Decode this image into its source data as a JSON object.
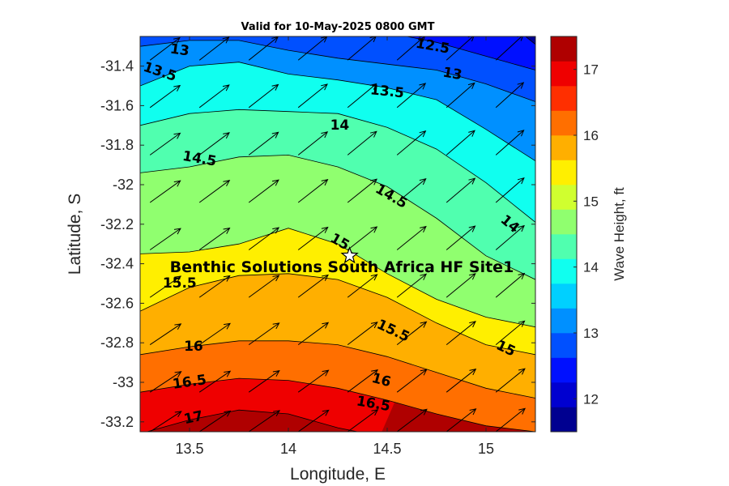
{
  "chart_data": {
    "type": "contour",
    "title": "Valid for 10-May-2025 0800 GMT",
    "xlabel": "Longitude, E",
    "ylabel": "Latitude, S",
    "xlim": [
      13.25,
      15.25
    ],
    "ylim": [
      -33.25,
      -31.25
    ],
    "x_ticks": [
      13.5,
      14,
      14.5,
      15
    ],
    "x_tick_labels": [
      "13.5",
      "14",
      "14.5",
      "15"
    ],
    "y_ticks": [
      -31.4,
      -31.6,
      -31.8,
      -32,
      -32.2,
      -32.4,
      -32.6,
      -32.8,
      -33,
      -33.2
    ],
    "y_tick_labels": [
      "-31.4",
      "-31.6",
      "-31.8",
      "-32",
      "-32.2",
      "-32.4",
      "-32.6",
      "-32.8",
      "-33",
      "-33.2"
    ],
    "colorbar": {
      "label": "Wave Height, ft",
      "range": [
        11.5,
        17.5
      ],
      "tick_values": [
        12,
        13,
        14,
        15,
        16,
        17
      ],
      "tick_labels": [
        "12",
        "13",
        "14",
        "15",
        "16",
        "17"
      ],
      "colors": [
        "#000090",
        "#0000D0",
        "#0010FF",
        "#0050FF",
        "#0090FF",
        "#00D0FF",
        "#10FFEF",
        "#50FFAF",
        "#90FF6F",
        "#D0FF2F",
        "#FFEF00",
        "#FFAF00",
        "#FF6F00",
        "#FF2F00",
        "#EF0000",
        "#AF0000"
      ]
    },
    "contour_levels": [
      12,
      12.5,
      13,
      13.5,
      14,
      14.5,
      15,
      15.5,
      16,
      16.5,
      17
    ],
    "contour_lines": [
      {
        "level": 17,
        "points": [
          [
            13.25,
            -33.26
          ],
          [
            13.5,
            -33.19
          ],
          [
            13.75,
            -33.14
          ],
          [
            14.0,
            -33.16
          ],
          [
            14.25,
            -33.23
          ],
          [
            14.35,
            -33.25
          ]
        ]
      },
      {
        "level": 16.5,
        "points": [
          [
            13.25,
            -33.05
          ],
          [
            13.5,
            -33.01
          ],
          [
            13.75,
            -32.98
          ],
          [
            14.0,
            -32.99
          ],
          [
            14.25,
            -33.03
          ],
          [
            14.5,
            -33.09
          ],
          [
            14.75,
            -33.16
          ],
          [
            15.0,
            -33.22
          ],
          [
            15.25,
            -33.25
          ]
        ]
      },
      {
        "level": 16,
        "points": [
          [
            13.25,
            -32.86
          ],
          [
            13.5,
            -32.82
          ],
          [
            13.75,
            -32.79
          ],
          [
            14.0,
            -32.79
          ],
          [
            14.25,
            -32.81
          ],
          [
            14.5,
            -32.87
          ],
          [
            14.75,
            -32.95
          ],
          [
            15.0,
            -33.03
          ],
          [
            15.25,
            -33.08
          ]
        ]
      },
      {
        "level": 15.5,
        "points": [
          [
            13.25,
            -32.64
          ],
          [
            13.5,
            -32.52
          ],
          [
            13.75,
            -32.46
          ],
          [
            14.0,
            -32.45
          ],
          [
            14.25,
            -32.48
          ],
          [
            14.5,
            -32.57
          ],
          [
            14.75,
            -32.7
          ],
          [
            15.0,
            -32.81
          ],
          [
            15.25,
            -32.86
          ]
        ]
      },
      {
        "level": 15,
        "points": [
          [
            13.25,
            -32.35
          ],
          [
            13.5,
            -32.34
          ],
          [
            13.75,
            -32.3
          ],
          [
            14.0,
            -32.22
          ],
          [
            14.25,
            -32.3
          ],
          [
            14.5,
            -32.45
          ],
          [
            14.75,
            -32.58
          ],
          [
            15.0,
            -32.67
          ],
          [
            15.25,
            -32.72
          ]
        ]
      },
      {
        "level": 14.5,
        "points": [
          [
            13.25,
            -31.94
          ],
          [
            13.5,
            -31.91
          ],
          [
            13.75,
            -31.86
          ],
          [
            14.0,
            -31.85
          ],
          [
            14.25,
            -31.91
          ],
          [
            14.5,
            -32.01
          ],
          [
            14.75,
            -32.17
          ],
          [
            15.0,
            -32.36
          ],
          [
            15.25,
            -32.48
          ]
        ]
      },
      {
        "level": 14,
        "points": [
          [
            13.25,
            -31.7
          ],
          [
            13.5,
            -31.64
          ],
          [
            13.75,
            -31.62
          ],
          [
            14.0,
            -31.63
          ],
          [
            14.25,
            -31.64
          ],
          [
            14.5,
            -31.71
          ],
          [
            14.75,
            -31.82
          ],
          [
            15.0,
            -31.99
          ],
          [
            15.25,
            -32.19
          ]
        ]
      },
      {
        "level": 13.5,
        "points": [
          [
            13.25,
            -31.5
          ],
          [
            13.5,
            -31.4
          ],
          [
            13.75,
            -31.38
          ],
          [
            14.0,
            -31.44
          ],
          [
            14.25,
            -31.47
          ],
          [
            14.5,
            -31.51
          ],
          [
            14.75,
            -31.57
          ],
          [
            15.0,
            -31.72
          ],
          [
            15.25,
            -31.88
          ]
        ]
      },
      {
        "level": 13,
        "points": [
          [
            13.25,
            -31.3
          ],
          [
            13.5,
            -31.27
          ],
          [
            13.75,
            -31.27
          ],
          [
            14.0,
            -31.32
          ],
          [
            14.25,
            -31.36
          ],
          [
            14.5,
            -31.39
          ],
          [
            14.75,
            -31.42
          ],
          [
            15.0,
            -31.49
          ],
          [
            15.25,
            -31.58
          ]
        ]
      },
      {
        "level": 12.5,
        "points": [
          [
            14.6,
            -31.25
          ],
          [
            14.75,
            -31.28
          ],
          [
            15.0,
            -31.35
          ],
          [
            15.25,
            -31.42
          ]
        ]
      },
      {
        "level": 12,
        "points": [
          [
            15.2,
            -31.25
          ],
          [
            15.25,
            -31.29
          ]
        ]
      }
    ],
    "contour_labels": [
      {
        "text": "13",
        "x": 13.45,
        "y": -31.32,
        "angle": 8
      },
      {
        "text": "13.5",
        "x": 13.35,
        "y": -31.43,
        "angle": 18
      },
      {
        "text": "12.5",
        "x": 14.73,
        "y": -31.3,
        "angle": 10
      },
      {
        "text": "13",
        "x": 14.83,
        "y": -31.44,
        "angle": 10
      },
      {
        "text": "13.5",
        "x": 14.5,
        "y": -31.53,
        "angle": 6
      },
      {
        "text": "14",
        "x": 14.26,
        "y": -31.7,
        "angle": 0
      },
      {
        "text": "14.5",
        "x": 13.55,
        "y": -31.87,
        "angle": 10
      },
      {
        "text": "14.5",
        "x": 14.52,
        "y": -32.06,
        "angle": 30
      },
      {
        "text": "14",
        "x": 15.12,
        "y": -32.2,
        "angle": 40
      },
      {
        "text": "15",
        "x": 14.26,
        "y": -32.29,
        "angle": 30
      },
      {
        "text": "15.5",
        "x": 13.45,
        "y": -32.5,
        "angle": 0
      },
      {
        "text": "15.5",
        "x": 14.53,
        "y": -32.74,
        "angle": 25
      },
      {
        "text": "15",
        "x": 15.1,
        "y": -32.83,
        "angle": 25
      },
      {
        "text": "16",
        "x": 13.52,
        "y": -32.82,
        "angle": 0
      },
      {
        "text": "16",
        "x": 14.47,
        "y": -32.99,
        "angle": 15
      },
      {
        "text": "16.5",
        "x": 13.5,
        "y": -33.0,
        "angle": -8
      },
      {
        "text": "16.5",
        "x": 14.43,
        "y": -33.11,
        "angle": 10
      },
      {
        "text": "17",
        "x": 13.52,
        "y": -33.18,
        "angle": -12
      }
    ],
    "direction_vectors": {
      "lon_grid": [
        13.3,
        13.55,
        13.8,
        14.05,
        14.3,
        14.55,
        14.8,
        15.05
      ],
      "lat_grid": [
        -31.37,
        -31.61,
        -31.85,
        -32.09,
        -32.33,
        -32.57,
        -32.81,
        -33.05,
        -33.25
      ],
      "direction": "towards NE"
    },
    "site": {
      "name": "Benthic Solutions South Africa HF Site1",
      "lon": 14.31,
      "lat": -32.36,
      "marker": "star"
    }
  }
}
